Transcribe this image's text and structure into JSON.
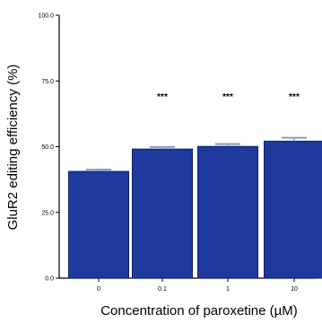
{
  "chart_data": {
    "type": "bar",
    "title": "",
    "xlabel": "Concentration of paroxetine (µM)",
    "ylabel": "GluR2 editing efficiency (%)",
    "categories": [
      "0",
      "0.1",
      "1",
      "10"
    ],
    "values": [
      40.6,
      49.1,
      50.1,
      52.1
    ],
    "errors": [
      0.7,
      0.8,
      0.9,
      1.3
    ],
    "significance": [
      "",
      "***",
      "***",
      "***"
    ],
    "ylim": [
      0,
      100
    ],
    "yticks": [
      0,
      25,
      50,
      75,
      100
    ],
    "ytick_labels": [
      "0.0",
      "25.0",
      "50.0",
      "75.0",
      "100.0"
    ],
    "grid": false,
    "colors": {
      "bar": "#1e3a9c",
      "bar_edge": "#0c1f6b",
      "axis": "#000000"
    }
  }
}
